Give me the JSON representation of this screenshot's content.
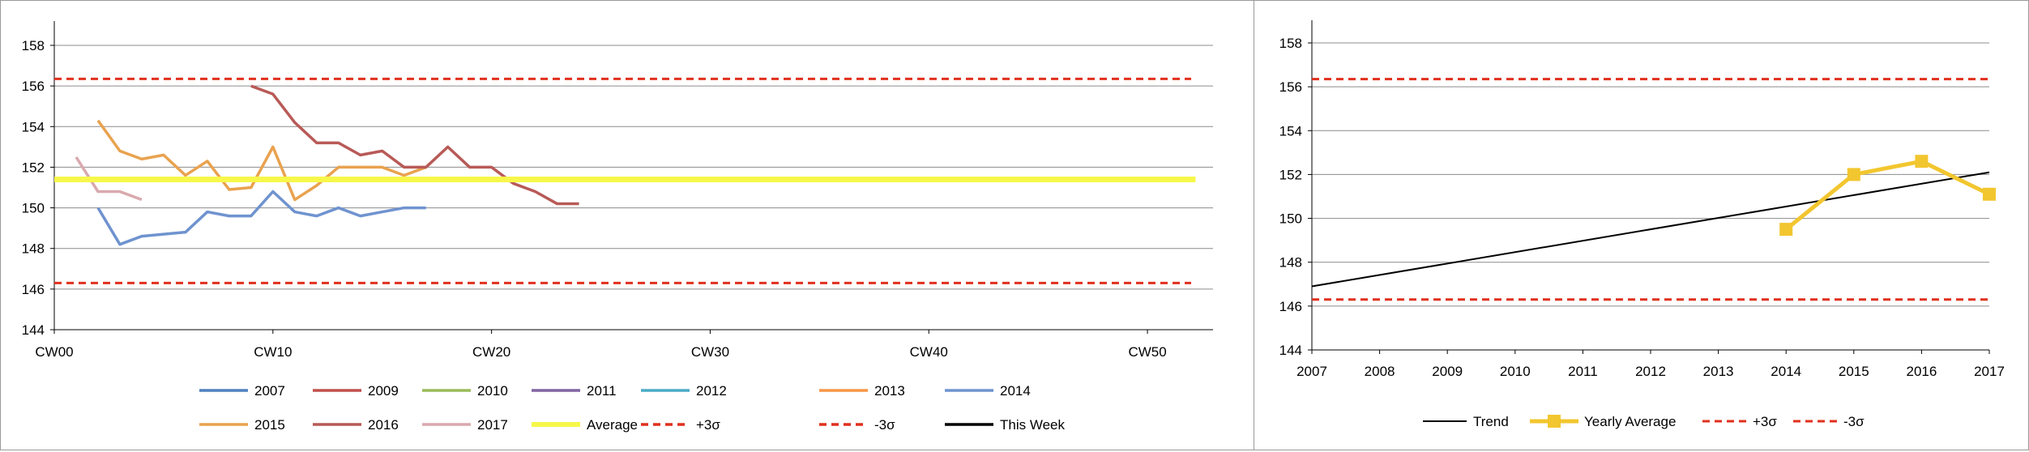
{
  "colors": {
    "y2007": "#4f81bd",
    "y2009": "#c0504d",
    "y2010": "#9bbb59",
    "y2011": "#8064a2",
    "y2012": "#4bacc6",
    "y2013": "#f79646",
    "y2014": "#6f93cf",
    "y2015": "#e9a24f",
    "y2016": "#b85a57",
    "y2017": "#d9a9ae",
    "average": "#f7f74a",
    "sigma": "#e0301e",
    "this_week": "#000000",
    "trend": "#000000",
    "yearly_average": "#f2c62f",
    "grid": "#8c8c8c"
  },
  "chart_data": [
    {
      "type": "line",
      "x_tick_labels": [
        "CW00",
        "CW10",
        "CW20",
        "CW30",
        "CW40",
        "CW50"
      ],
      "xlim": [
        0,
        53
      ],
      "ylim": [
        144,
        158
      ],
      "y_ticks": [
        144,
        146,
        148,
        150,
        152,
        154,
        156,
        158
      ],
      "grid": true,
      "legend_position": "bottom",
      "legend": [
        "2007",
        "2009",
        "2010",
        "2011",
        "2012",
        "2013",
        "2014",
        "2015",
        "2016",
        "2017",
        "Average",
        "+3σ",
        "-3σ",
        "This Week"
      ],
      "series": [
        {
          "name": "2015",
          "color_key": "y2015",
          "x": [
            2,
            3,
            4,
            5,
            6,
            7,
            8,
            9,
            10,
            11,
            12,
            13,
            14,
            15,
            16,
            17
          ],
          "values": [
            154.3,
            152.8,
            152.4,
            152.6,
            151.6,
            152.3,
            150.9,
            151.0,
            153.0,
            150.4,
            151.1,
            152.0,
            152.0,
            152.0,
            151.6,
            152.0
          ]
        },
        {
          "name": "2016",
          "color_key": "y2016",
          "x": [
            9,
            10,
            11,
            12,
            13,
            14,
            15,
            16,
            17,
            18,
            19,
            20,
            21,
            22,
            23,
            24
          ],
          "values": [
            156.0,
            155.6,
            154.2,
            153.2,
            153.2,
            152.6,
            152.8,
            152.0,
            152.0,
            153.0,
            152.0,
            152.0,
            151.2,
            150.8,
            150.2,
            150.2
          ]
        },
        {
          "name": "2017",
          "color_key": "y2017",
          "x": [
            1,
            2,
            3,
            4
          ],
          "values": [
            152.5,
            150.8,
            150.8,
            150.4
          ]
        },
        {
          "name": "2014",
          "color_key": "y2014",
          "x": [
            2,
            3,
            4,
            5,
            6,
            7,
            8,
            9,
            10,
            11,
            12,
            13,
            14,
            15,
            16,
            17
          ],
          "values": [
            150.0,
            148.2,
            148.6,
            148.7,
            148.8,
            149.8,
            149.6,
            149.6,
            150.8,
            149.8,
            149.6,
            150.0,
            149.6,
            149.8,
            150.0,
            150.0
          ]
        }
      ],
      "average": 151.4,
      "plus_3_sigma": 156.35,
      "minus_3_sigma": 146.3
    },
    {
      "type": "line",
      "x_tick_labels": [
        "2007",
        "2008",
        "2009",
        "2010",
        "2011",
        "2012",
        "2013",
        "2014",
        "2015",
        "2016",
        "2017"
      ],
      "xlim": [
        2007,
        2017
      ],
      "ylim": [
        144,
        158
      ],
      "y_ticks": [
        144,
        146,
        148,
        150,
        152,
        154,
        156,
        158
      ],
      "grid": true,
      "legend_position": "bottom",
      "legend": [
        "Trend",
        "Yearly Average",
        "+3σ",
        "-3σ"
      ],
      "trend": {
        "name": "Trend",
        "x": [
          2007,
          2017
        ],
        "values": [
          146.9,
          152.1
        ]
      },
      "yearly_average": {
        "name": "Yearly Average",
        "x": [
          2014,
          2015,
          2016,
          2017
        ],
        "values": [
          149.5,
          152.0,
          152.6,
          151.1
        ]
      },
      "plus_3_sigma": 156.35,
      "minus_3_sigma": 146.3
    }
  ]
}
